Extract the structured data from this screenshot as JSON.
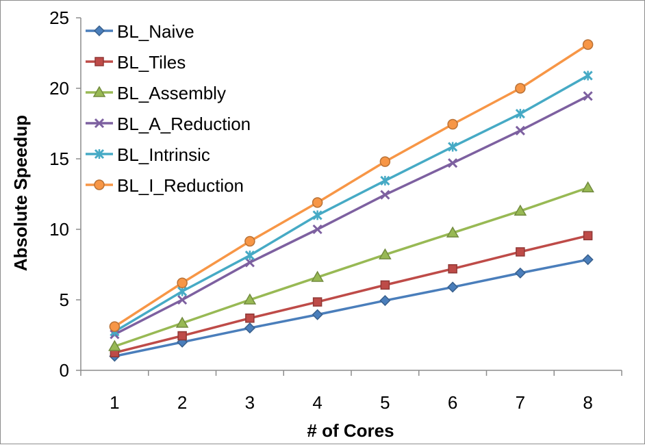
{
  "chart_data": {
    "type": "line",
    "title": "",
    "xlabel": "# of Cores",
    "ylabel": "Absolute Speedup",
    "x": [
      1,
      2,
      3,
      4,
      5,
      6,
      7,
      8
    ],
    "ylim": [
      0,
      25
    ],
    "yticks": [
      0,
      5,
      10,
      15,
      20,
      25
    ],
    "grid": false,
    "legend_position": "top-left",
    "series": [
      {
        "name": "BL_Naive",
        "color": "#4a7ebb",
        "marker": "diamond",
        "values": [
          1.0,
          2.0,
          3.0,
          3.95,
          4.95,
          5.9,
          6.9,
          7.85
        ]
      },
      {
        "name": "BL_Tiles",
        "color": "#be4b48",
        "marker": "square",
        "values": [
          1.25,
          2.45,
          3.7,
          4.85,
          6.05,
          7.2,
          8.4,
          9.55
        ]
      },
      {
        "name": "BL_Assembly",
        "color": "#98b954",
        "marker": "triangle",
        "values": [
          1.7,
          3.35,
          5.0,
          6.6,
          8.2,
          9.75,
          11.3,
          12.95
        ]
      },
      {
        "name": "BL_A_Reduction",
        "color": "#7d60a0",
        "marker": "x",
        "values": [
          2.55,
          5.0,
          7.65,
          10.0,
          12.45,
          14.7,
          17.0,
          19.45
        ]
      },
      {
        "name": "BL_Intrinsic",
        "color": "#46aac5",
        "marker": "star",
        "values": [
          2.75,
          5.6,
          8.15,
          11.0,
          13.45,
          15.85,
          18.2,
          20.9
        ]
      },
      {
        "name": "BL_I_Reduction",
        "color": "#f79646",
        "marker": "circle",
        "values": [
          3.1,
          6.2,
          9.15,
          11.9,
          14.8,
          17.45,
          20.0,
          23.1
        ]
      }
    ]
  }
}
